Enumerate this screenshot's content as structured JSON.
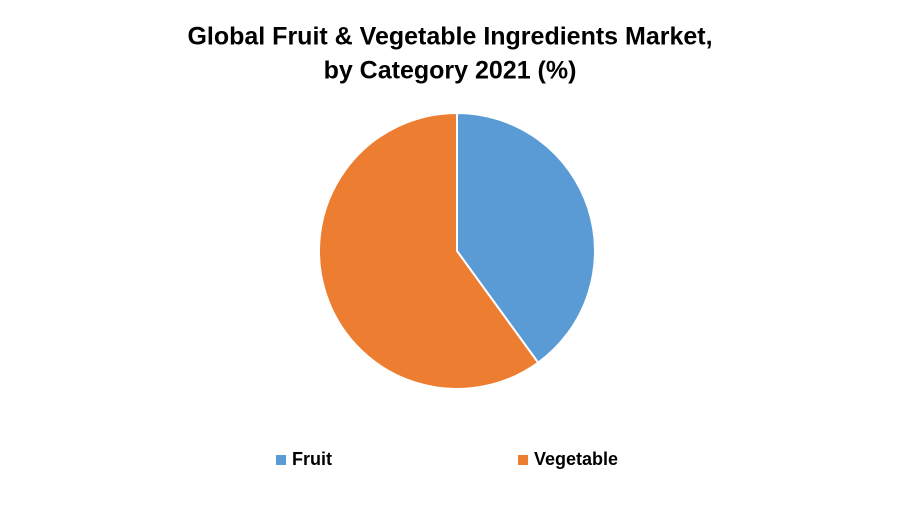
{
  "chart_data": {
    "type": "pie",
    "title": [
      "Global Fruit & Vegetable Ingredients Market,",
      "by Category 2021 (%)"
    ],
    "categories": [
      "Fruit",
      "Vegetable"
    ],
    "values": [
      40,
      60
    ],
    "colors": [
      "#5b9bd5",
      "#ed7d31"
    ],
    "legend": "bottom"
  }
}
